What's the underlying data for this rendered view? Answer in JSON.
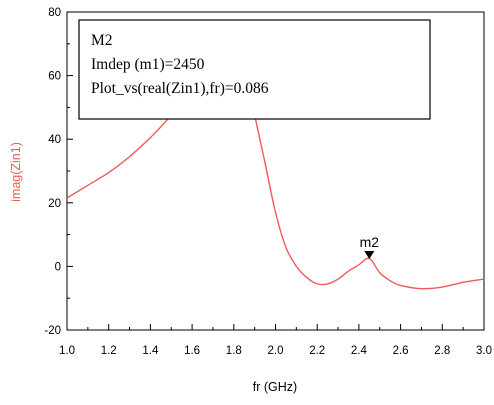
{
  "chart_data": {
    "type": "line",
    "xlabel": "fr (GHz)",
    "ylabel": "imag(Zin1)",
    "xlim": [
      1.0,
      3.0
    ],
    "ylim": [
      -20,
      80
    ],
    "x_ticks": [
      "1.0",
      "1.2",
      "1.4",
      "1.6",
      "1.8",
      "2.0",
      "2.2",
      "2.4",
      "2.6",
      "2.8",
      "3.0"
    ],
    "y_ticks": [
      "-20",
      "0",
      "20",
      "40",
      "60",
      "80"
    ],
    "grid": false,
    "series": [
      {
        "color": "#f05a5a",
        "x": [
          1.0,
          1.1,
          1.2,
          1.3,
          1.4,
          1.5,
          1.6,
          1.7,
          1.75,
          1.8,
          1.82,
          1.85,
          1.9,
          1.95,
          2.0,
          2.05,
          2.1,
          2.15,
          2.2,
          2.25,
          2.3,
          2.35,
          2.4,
          2.45,
          2.5,
          2.55,
          2.6,
          2.7,
          2.8,
          2.9,
          3.0
        ],
        "y": [
          21.5,
          25.5,
          29.5,
          34.5,
          40.5,
          47.5,
          55.5,
          64.5,
          68.5,
          70.5,
          69.0,
          62.0,
          47.5,
          32.5,
          17.0,
          6.0,
          0.0,
          -3.5,
          -5.5,
          -5.5,
          -4.0,
          -1.5,
          0.5,
          2.5,
          -2.0,
          -4.5,
          -6.0,
          -7.0,
          -6.5,
          -5.0,
          -4.0
        ]
      }
    ],
    "marker": {
      "name": "m2",
      "x": 2.45,
      "y": 2.0
    },
    "marker_box": {
      "lines": [
        "M2",
        "Imdep (m1)=2450",
        "Plot_vs(real(Zin1),fr)=0.086"
      ]
    }
  },
  "colors": {
    "series": "#f05a5a",
    "ylabel": "#f05a5a",
    "axis": "#000000"
  }
}
